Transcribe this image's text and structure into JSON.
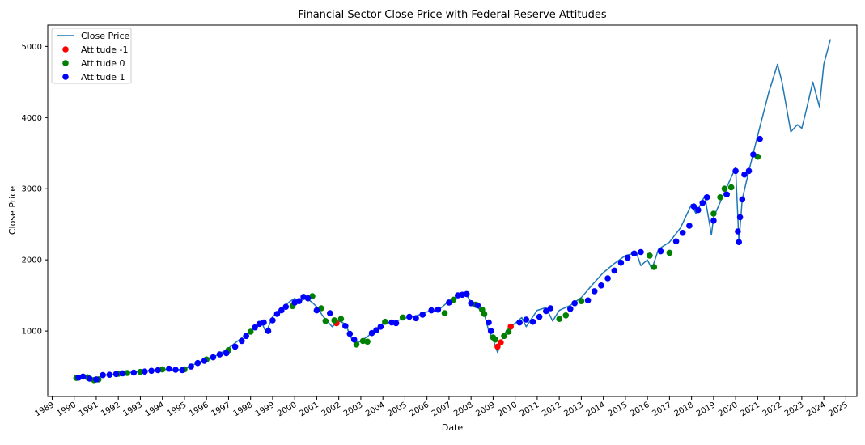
{
  "chart_data": {
    "type": "line",
    "title": "Financial Sector Close Price with Federal Reserve Attitudes",
    "xlabel": "Date",
    "ylabel": "Close Price",
    "xlim": [
      1988.8,
      2025.5
    ],
    "ylim": [
      80,
      5300
    ],
    "x_ticks": [
      "1989",
      "1990",
      "1991",
      "1992",
      "1993",
      "1994",
      "1995",
      "1996",
      "1997",
      "1998",
      "1999",
      "2000",
      "2001",
      "2002",
      "2003",
      "2004",
      "2005",
      "2006",
      "2007",
      "2008",
      "2009",
      "2010",
      "2011",
      "2012",
      "2013",
      "2014",
      "2015",
      "2016",
      "2017",
      "2018",
      "2019",
      "2020",
      "2021",
      "2022",
      "2023",
      "2024",
      "2025"
    ],
    "y_ticks": [
      1000,
      2000,
      3000,
      4000,
      5000
    ],
    "grid": false,
    "legend_position": "top-left",
    "legend": [
      {
        "label": "Close Price",
        "kind": "line",
        "color": "#1f77b4"
      },
      {
        "label": "Attitude -1",
        "kind": "dot",
        "color": "#ff0000"
      },
      {
        "label": "Attitude 0",
        "kind": "dot",
        "color": "#008000"
      },
      {
        "label": "Attitude 1",
        "kind": "dot",
        "color": "#0000ff"
      }
    ],
    "series": [
      {
        "name": "Close Price",
        "color": "#1f77b4",
        "points": [
          [
            1990.0,
            340
          ],
          [
            1990.5,
            360
          ],
          [
            1990.8,
            310
          ],
          [
            1991.0,
            330
          ],
          [
            1991.3,
            380
          ],
          [
            1991.8,
            390
          ],
          [
            1992.0,
            410
          ],
          [
            1992.5,
            415
          ],
          [
            1993.0,
            430
          ],
          [
            1993.5,
            445
          ],
          [
            1994.0,
            465
          ],
          [
            1994.5,
            455
          ],
          [
            1995.0,
            460
          ],
          [
            1995.5,
            540
          ],
          [
            1996.0,
            610
          ],
          [
            1996.5,
            660
          ],
          [
            1997.0,
            760
          ],
          [
            1997.5,
            880
          ],
          [
            1997.8,
            950
          ],
          [
            1998.0,
            990
          ],
          [
            1998.5,
            1120
          ],
          [
            1998.7,
            980
          ],
          [
            1999.0,
            1200
          ],
          [
            1999.5,
            1340
          ],
          [
            1999.8,
            1420
          ],
          [
            2000.0,
            1460
          ],
          [
            2000.2,
            1400
          ],
          [
            2000.5,
            1470
          ],
          [
            2000.8,
            1400
          ],
          [
            2001.0,
            1340
          ],
          [
            2001.3,
            1200
          ],
          [
            2001.7,
            1060
          ],
          [
            2002.0,
            1140
          ],
          [
            2002.3,
            1100
          ],
          [
            2002.6,
            880
          ],
          [
            2002.8,
            820
          ],
          [
            2003.0,
            860
          ],
          [
            2003.3,
            920
          ],
          [
            2003.6,
            1000
          ],
          [
            2004.0,
            1110
          ],
          [
            2004.5,
            1130
          ],
          [
            2005.0,
            1180
          ],
          [
            2005.5,
            1210
          ],
          [
            2006.0,
            1270
          ],
          [
            2006.5,
            1290
          ],
          [
            2007.0,
            1420
          ],
          [
            2007.3,
            1480
          ],
          [
            2007.6,
            1520
          ],
          [
            2007.8,
            1500
          ],
          [
            2008.0,
            1410
          ],
          [
            2008.3,
            1330
          ],
          [
            2008.6,
            1240
          ],
          [
            2008.8,
            1000
          ],
          [
            2009.0,
            880
          ],
          [
            2009.2,
            700
          ],
          [
            2009.4,
            880
          ],
          [
            2009.6,
            1000
          ],
          [
            2009.8,
            1060
          ],
          [
            2010.0,
            1110
          ],
          [
            2010.3,
            1190
          ],
          [
            2010.5,
            1060
          ],
          [
            2010.8,
            1200
          ],
          [
            2011.0,
            1290
          ],
          [
            2011.4,
            1330
          ],
          [
            2011.7,
            1140
          ],
          [
            2012.0,
            1290
          ],
          [
            2012.5,
            1360
          ],
          [
            2013.0,
            1470
          ],
          [
            2013.5,
            1650
          ],
          [
            2014.0,
            1820
          ],
          [
            2014.5,
            1950
          ],
          [
            2015.0,
            2060
          ],
          [
            2015.5,
            2100
          ],
          [
            2015.7,
            1920
          ],
          [
            2016.0,
            2000
          ],
          [
            2016.2,
            1870
          ],
          [
            2016.5,
            2150
          ],
          [
            2017.0,
            2250
          ],
          [
            2017.5,
            2450
          ],
          [
            2018.0,
            2780
          ],
          [
            2018.2,
            2650
          ],
          [
            2018.6,
            2900
          ],
          [
            2018.9,
            2350
          ],
          [
            2019.0,
            2600
          ],
          [
            2019.5,
            2950
          ],
          [
            2020.0,
            3300
          ],
          [
            2020.15,
            2250
          ],
          [
            2020.3,
            2850
          ],
          [
            2020.6,
            3250
          ],
          [
            2021.0,
            3750
          ],
          [
            2021.5,
            4350
          ],
          [
            2021.9,
            4750
          ],
          [
            2022.1,
            4500
          ],
          [
            2022.5,
            3800
          ],
          [
            2022.8,
            3900
          ],
          [
            2023.0,
            3850
          ],
          [
            2023.2,
            4100
          ],
          [
            2023.5,
            4500
          ],
          [
            2023.8,
            4150
          ],
          [
            2024.0,
            4750
          ],
          [
            2024.3,
            5100
          ]
        ]
      },
      {
        "name": "Attitude -1",
        "color": "#ff0000",
        "points": [
          [
            2001.9,
            1110
          ],
          [
            2009.2,
            780
          ],
          [
            2009.35,
            840
          ],
          [
            2009.8,
            1060
          ]
        ]
      },
      {
        "name": "Attitude 0",
        "color": "#008000",
        "points": [
          [
            1990.1,
            340
          ],
          [
            1990.6,
            350
          ],
          [
            1990.9,
            310
          ],
          [
            1991.1,
            320
          ],
          [
            1992.0,
            400
          ],
          [
            1992.4,
            410
          ],
          [
            1993.0,
            425
          ],
          [
            1994.0,
            460
          ],
          [
            1995.0,
            460
          ],
          [
            1996.0,
            600
          ],
          [
            1997.0,
            730
          ],
          [
            1998.0,
            990
          ],
          [
            1999.9,
            1350
          ],
          [
            2000.8,
            1490
          ],
          [
            2001.2,
            1320
          ],
          [
            2001.4,
            1140
          ],
          [
            2001.8,
            1150
          ],
          [
            2002.1,
            1170
          ],
          [
            2002.8,
            810
          ],
          [
            2003.1,
            860
          ],
          [
            2003.3,
            850
          ],
          [
            2004.1,
            1130
          ],
          [
            2004.9,
            1190
          ],
          [
            2006.8,
            1250
          ],
          [
            2007.2,
            1440
          ],
          [
            2008.2,
            1370
          ],
          [
            2008.5,
            1300
          ],
          [
            2008.6,
            1240
          ],
          [
            2009.0,
            910
          ],
          [
            2009.1,
            880
          ],
          [
            2009.5,
            930
          ],
          [
            2009.7,
            990
          ],
          [
            2012.0,
            1170
          ],
          [
            2012.3,
            1220
          ],
          [
            2013.0,
            1420
          ],
          [
            2016.1,
            2060
          ],
          [
            2016.3,
            1900
          ],
          [
            2017.0,
            2100
          ],
          [
            2019.0,
            2650
          ],
          [
            2019.3,
            2880
          ],
          [
            2019.5,
            3000
          ],
          [
            2019.8,
            3020
          ],
          [
            2021.0,
            3450
          ]
        ]
      },
      {
        "name": "Attitude 1",
        "color": "#0000ff",
        "points": [
          [
            1990.2,
            345
          ],
          [
            1990.4,
            360
          ],
          [
            1990.7,
            330
          ],
          [
            1991.0,
            320
          ],
          [
            1991.3,
            380
          ],
          [
            1991.6,
            385
          ],
          [
            1991.9,
            395
          ],
          [
            1992.2,
            405
          ],
          [
            1992.7,
            415
          ],
          [
            1993.2,
            430
          ],
          [
            1993.5,
            440
          ],
          [
            1993.8,
            450
          ],
          [
            1994.3,
            470
          ],
          [
            1994.6,
            455
          ],
          [
            1994.9,
            450
          ],
          [
            1995.3,
            500
          ],
          [
            1995.6,
            550
          ],
          [
            1995.9,
            580
          ],
          [
            1996.3,
            630
          ],
          [
            1996.6,
            670
          ],
          [
            1996.9,
            690
          ],
          [
            1997.3,
            780
          ],
          [
            1997.6,
            860
          ],
          [
            1997.8,
            930
          ],
          [
            1998.2,
            1050
          ],
          [
            1998.4,
            1100
          ],
          [
            1998.6,
            1120
          ],
          [
            1998.8,
            1000
          ],
          [
            1999.0,
            1150
          ],
          [
            1999.2,
            1240
          ],
          [
            1999.4,
            1290
          ],
          [
            1999.6,
            1340
          ],
          [
            2000.0,
            1400
          ],
          [
            2000.2,
            1420
          ],
          [
            2000.4,
            1480
          ],
          [
            2000.6,
            1460
          ],
          [
            2001.0,
            1290
          ],
          [
            2001.6,
            1250
          ],
          [
            2002.3,
            1070
          ],
          [
            2002.5,
            960
          ],
          [
            2002.7,
            880
          ],
          [
            2003.5,
            970
          ],
          [
            2003.7,
            1010
          ],
          [
            2003.9,
            1060
          ],
          [
            2004.4,
            1120
          ],
          [
            2004.6,
            1110
          ],
          [
            2005.2,
            1200
          ],
          [
            2005.5,
            1180
          ],
          [
            2005.8,
            1230
          ],
          [
            2006.2,
            1290
          ],
          [
            2006.5,
            1300
          ],
          [
            2007.0,
            1400
          ],
          [
            2007.4,
            1500
          ],
          [
            2007.6,
            1510
          ],
          [
            2007.8,
            1520
          ],
          [
            2008.0,
            1390
          ],
          [
            2008.3,
            1360
          ],
          [
            2008.8,
            1120
          ],
          [
            2008.9,
            1000
          ],
          [
            2010.2,
            1120
          ],
          [
            2010.5,
            1160
          ],
          [
            2010.8,
            1130
          ],
          [
            2011.1,
            1200
          ],
          [
            2011.4,
            1280
          ],
          [
            2011.6,
            1320
          ],
          [
            2012.5,
            1310
          ],
          [
            2012.7,
            1390
          ],
          [
            2013.3,
            1430
          ],
          [
            2013.6,
            1560
          ],
          [
            2013.9,
            1640
          ],
          [
            2014.2,
            1740
          ],
          [
            2014.5,
            1850
          ],
          [
            2014.8,
            1960
          ],
          [
            2015.1,
            2030
          ],
          [
            2015.4,
            2090
          ],
          [
            2015.7,
            2110
          ],
          [
            2016.6,
            2120
          ],
          [
            2017.3,
            2260
          ],
          [
            2017.6,
            2380
          ],
          [
            2017.9,
            2480
          ],
          [
            2018.1,
            2750
          ],
          [
            2018.3,
            2700
          ],
          [
            2018.5,
            2800
          ],
          [
            2018.7,
            2880
          ],
          [
            2019.0,
            2550
          ],
          [
            2019.6,
            2920
          ],
          [
            2020.0,
            3250
          ],
          [
            2020.1,
            2400
          ],
          [
            2020.15,
            2250
          ],
          [
            2020.2,
            2600
          ],
          [
            2020.3,
            2850
          ],
          [
            2020.4,
            3200
          ],
          [
            2020.6,
            3250
          ],
          [
            2020.8,
            3480
          ],
          [
            2021.1,
            3700
          ]
        ]
      }
    ]
  }
}
